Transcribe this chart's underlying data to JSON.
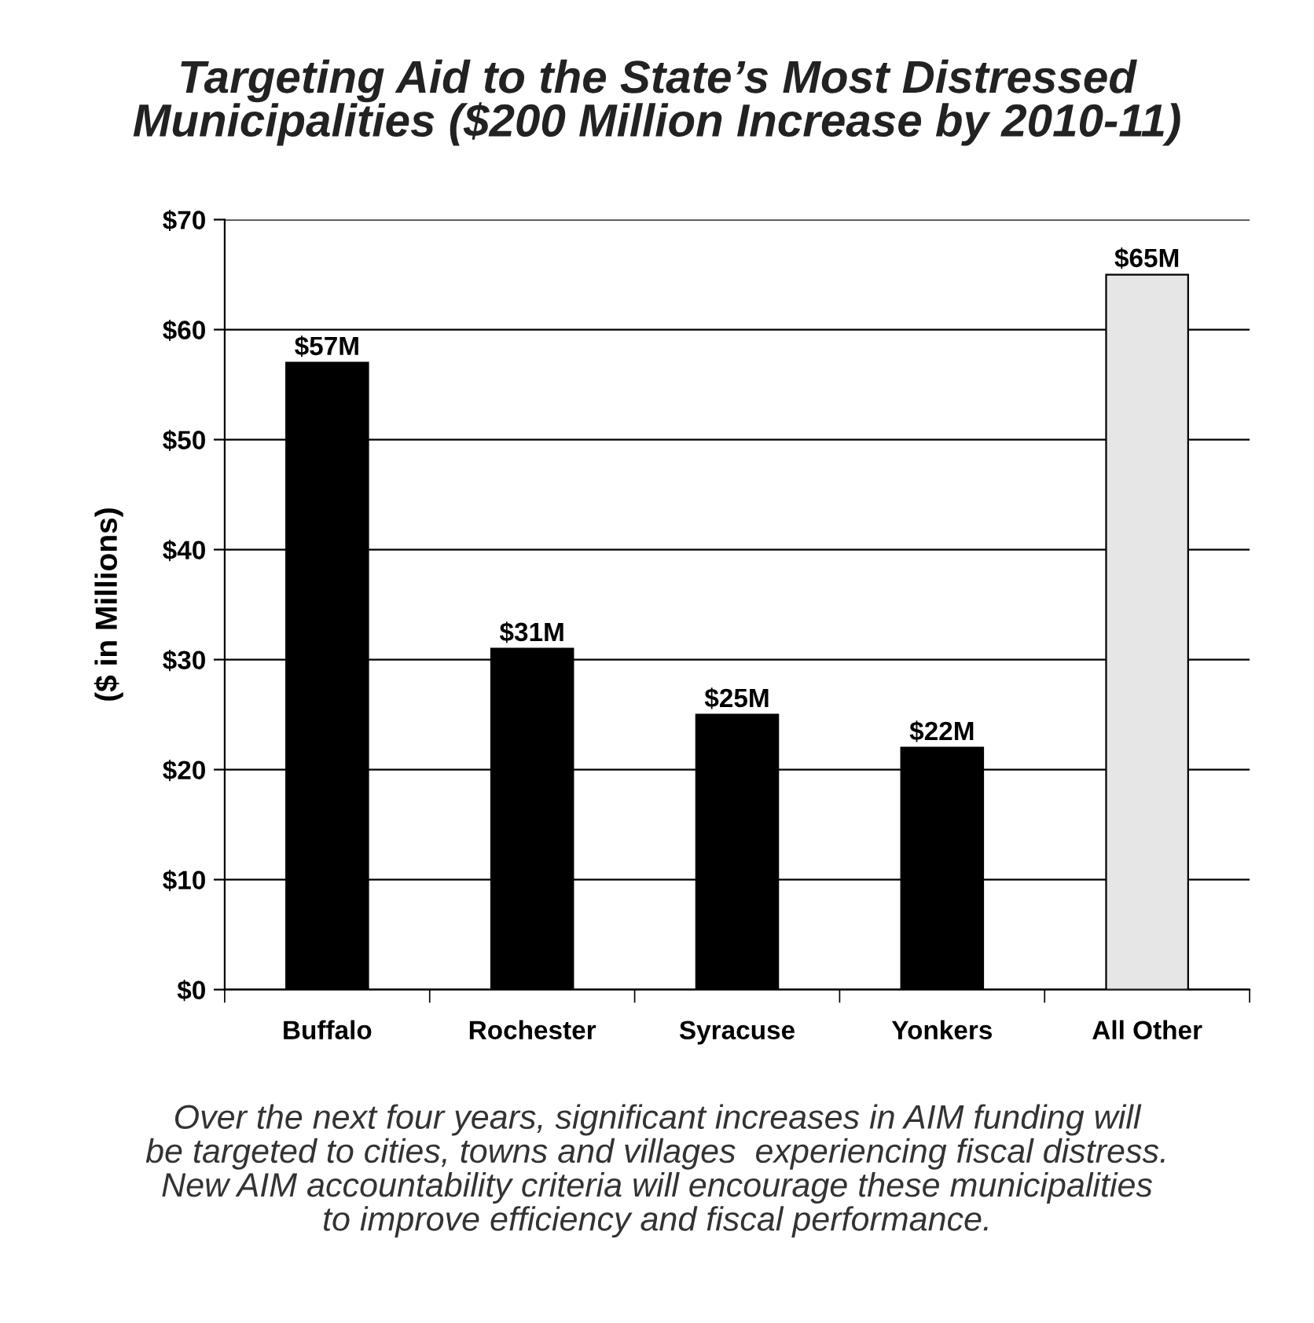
{
  "chart_data": {
    "type": "bar",
    "title": "Targeting Aid to the State’s Most Distressed\nMunicipalities ($200 Million Increase by 2010-11)",
    "ylabel": "($ in Millions)",
    "categories": [
      "Buffalo",
      "Rochester",
      "Syracuse",
      "Yonkers",
      "All Other"
    ],
    "values": [
      57,
      31,
      25,
      22,
      65
    ],
    "colors": [
      "#000000",
      "#000000",
      "#000000",
      "#000000",
      "#e6e6e6"
    ],
    "value_labels": [
      "$57M",
      "$31M",
      "$25M",
      "$22M",
      "$65M"
    ],
    "ylim": [
      0,
      70
    ],
    "yticks": [
      {
        "value": 0,
        "label": "$0"
      },
      {
        "value": 10,
        "label": "$10"
      },
      {
        "value": 20,
        "label": "$20"
      },
      {
        "value": 30,
        "label": "$30"
      },
      {
        "value": 40,
        "label": "$40"
      },
      {
        "value": 50,
        "label": "$50"
      },
      {
        "value": 60,
        "label": "$60"
      },
      {
        "value": 70,
        "label": "$70"
      }
    ],
    "grid": "y",
    "annotations": [
      "Over the next four years, significant increases in AIM funding will\nbe targeted to cities, towns and villages  experiencing fiscal distress.\nNew AIM accountability criteria will encourage these municipalities\nto improve efficiency and fiscal performance."
    ]
  }
}
